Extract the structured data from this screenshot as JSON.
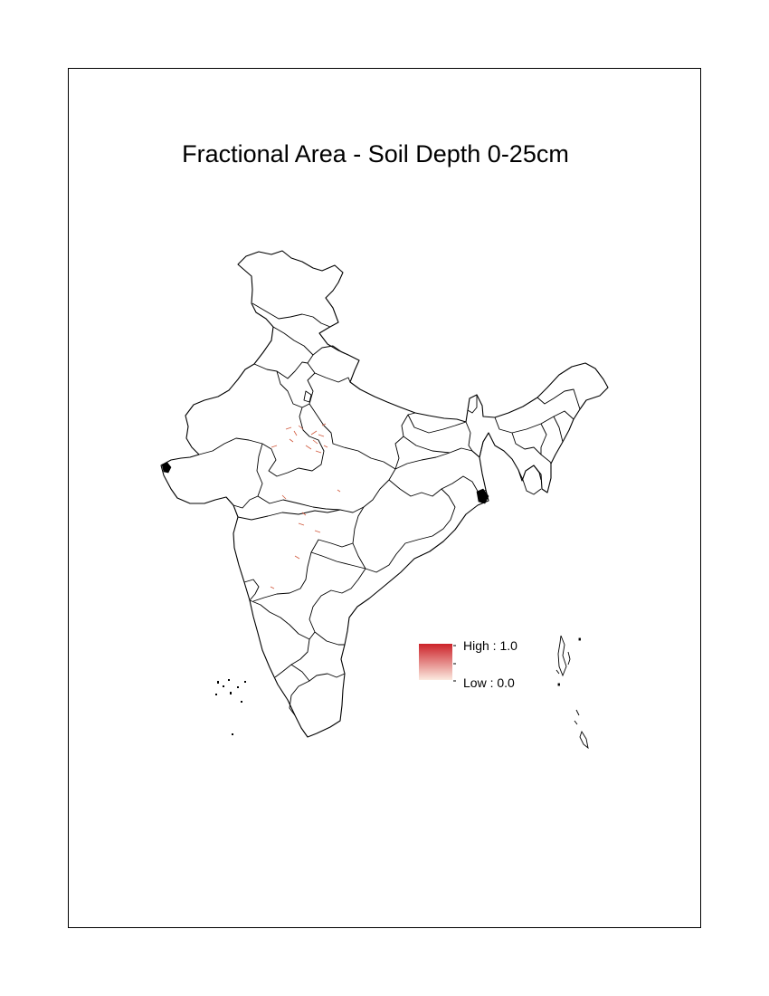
{
  "title": "Fractional Area - Soil Depth 0-25cm",
  "legend": {
    "high_label": "High : 1.0",
    "low_label": "Low : 0.0",
    "high_value": 1.0,
    "low_value": 0.0,
    "high_color": "#cc2229",
    "low_color": "#fbe9df"
  },
  "colors": {
    "boundary": "#000000",
    "background": "#ffffff",
    "patch": "#c8442c"
  }
}
